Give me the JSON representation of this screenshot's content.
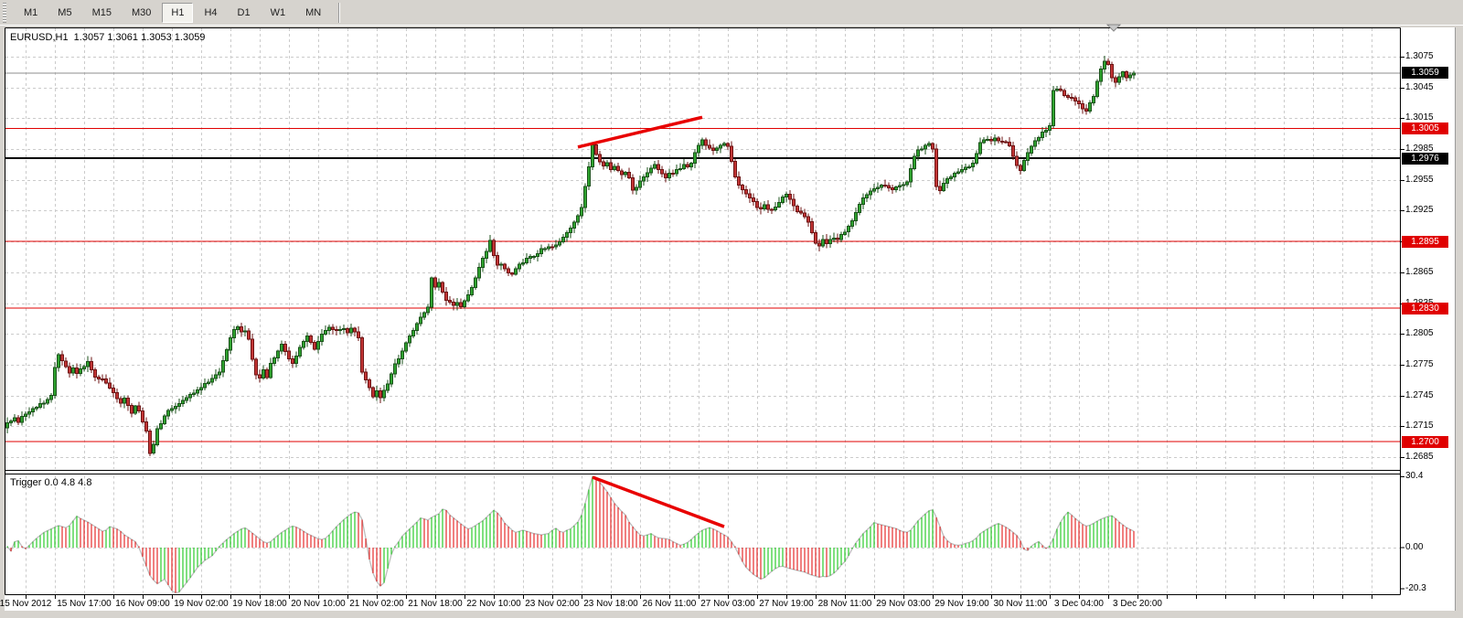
{
  "toolbar": {
    "buttons": [
      {
        "label": "M1",
        "active": false
      },
      {
        "label": "M5",
        "active": false
      },
      {
        "label": "M15",
        "active": false
      },
      {
        "label": "M30",
        "active": false
      },
      {
        "label": "H1",
        "active": true
      },
      {
        "label": "H4",
        "active": false
      },
      {
        "label": "D1",
        "active": false
      },
      {
        "label": "W1",
        "active": false
      },
      {
        "label": "MN",
        "active": false
      }
    ]
  },
  "chart": {
    "symbol_title": "EURUSD,H1  1.3057 1.3061 1.3053 1.3059",
    "indicator_title": "Trigger 0.0 4.8 4.8"
  },
  "chart_data": {
    "type": "candlestick",
    "symbol": "EURUSD",
    "timeframe": "H1",
    "current_ohlc": {
      "o": 1.3057,
      "h": 1.3061,
      "l": 1.3053,
      "c": 1.3059
    },
    "num_candles": 309,
    "price_axis_labels": [
      "1.3075",
      "1.3045",
      "1.3015",
      "1.2985",
      "1.2955",
      "1.2925",
      "1.2895",
      "1.2865",
      "1.2835",
      "1.2805",
      "1.2775",
      "1.2745",
      "1.2715",
      "1.2685"
    ],
    "price_badges": [
      {
        "text": "1.3059",
        "price": 1.3059,
        "color": "#000000"
      },
      {
        "text": "1.3005",
        "price": 1.3005,
        "color": "#E00000"
      },
      {
        "text": "1.2976",
        "price": 1.2976,
        "color": "#000000"
      },
      {
        "text": "1.2895",
        "price": 1.2895,
        "color": "#E00000"
      },
      {
        "text": "1.2830",
        "price": 1.283,
        "color": "#E00000"
      },
      {
        "text": "1.2700",
        "price": 1.27,
        "color": "#E00000"
      }
    ],
    "levels": [
      {
        "price": 1.3005,
        "color": "#E00000",
        "width": 1
      },
      {
        "price": 1.2895,
        "color": "#E00000",
        "width": 1
      },
      {
        "price": 1.283,
        "color": "#E00000",
        "width": 1
      },
      {
        "price": 1.27,
        "color": "#E00000",
        "width": 1
      },
      {
        "price": 1.2976,
        "color": "#000000",
        "width": 2
      }
    ],
    "bid_price": 1.3059,
    "time_labels": {
      "start_index": 5,
      "step": 16,
      "texts": [
        "15 Nov 2012",
        "15 Nov 17:00",
        "16 Nov 09:00",
        "19 Nov 02:00",
        "19 Nov 18:00",
        "20 Nov 10:00",
        "21 Nov 02:00",
        "21 Nov 18:00",
        "22 Nov 10:00",
        "23 Nov 02:00",
        "23 Nov 18:00",
        "26 Nov 11:00",
        "27 Nov 03:00",
        "27 Nov 19:00",
        "28 Nov 11:00",
        "29 Nov 03:00",
        "29 Nov 19:00",
        "30 Nov 11:00",
        "3 Dec 04:00",
        "3 Dec 20:00"
      ]
    },
    "price_waypoints": [
      0,
      1.2718,
      2,
      1.2724,
      3,
      1.272,
      5,
      1.2727,
      7,
      1.2732,
      9,
      1.2736,
      11,
      1.2741,
      12,
      1.2746,
      13,
      1.2772,
      14,
      1.2785,
      15,
      1.2779,
      16,
      1.2774,
      17,
      1.2766,
      18,
      1.2771,
      19,
      1.2766,
      20,
      1.277,
      21,
      1.2774,
      22,
      1.2778,
      23,
      1.2771,
      24,
      1.2763,
      25,
      1.276,
      26,
      1.2762,
      27,
      1.2757,
      28,
      1.2752,
      29,
      1.2747,
      30,
      1.2742,
      31,
      1.2738,
      32,
      1.2742,
      33,
      1.2735,
      34,
      1.2728,
      35,
      1.2734,
      36,
      1.2731,
      37,
      1.2719,
      38,
      1.271,
      39,
      1.269,
      40,
      1.2698,
      41,
      1.2712,
      42,
      1.2718,
      43,
      1.2725,
      44,
      1.273,
      46,
      1.2735,
      48,
      1.2741,
      50,
      1.2746,
      52,
      1.2751,
      54,
      1.2756,
      56,
      1.2762,
      58,
      1.2769,
      60,
      1.2789,
      61,
      1.2801,
      62,
      1.281,
      63,
      1.2813,
      64,
      1.2806,
      65,
      1.2809,
      66,
      1.28,
      67,
      1.278,
      68,
      1.2766,
      69,
      1.2762,
      70,
      1.2769,
      71,
      1.2763,
      72,
      1.2776,
      74,
      1.2789,
      75,
      1.2796,
      76,
      1.2788,
      77,
      1.278,
      78,
      1.2776,
      79,
      1.2783,
      80,
      1.2791,
      81,
      1.2798,
      82,
      1.2803,
      83,
      1.2796,
      84,
      1.2791,
      85,
      1.2799,
      86,
      1.2805,
      87,
      1.2809,
      88,
      1.2812,
      90,
      1.2808,
      92,
      1.2811,
      93,
      1.2806,
      94,
      1.281,
      95,
      1.2808,
      96,
      1.2802,
      97,
      1.2768,
      98,
      1.276,
      99,
      1.2752,
      100,
      1.2745,
      101,
      1.2749,
      102,
      1.2744,
      103,
      1.2751,
      104,
      1.2756,
      105,
      1.2766,
      106,
      1.2776,
      107,
      1.2781,
      108,
      1.2789,
      109,
      1.2797,
      110,
      1.2803,
      111,
      1.2809,
      112,
      1.2816,
      113,
      1.2821,
      114,
      1.2826,
      115,
      1.2831,
      116,
      1.2859,
      117,
      1.2851,
      118,
      1.2856,
      119,
      1.2846,
      120,
      1.2839,
      121,
      1.2836,
      122,
      1.2832,
      123,
      1.2836,
      124,
      1.2831,
      125,
      1.2837,
      126,
      1.2843,
      127,
      1.2851,
      128,
      1.2859,
      129,
      1.2869,
      130,
      1.2878,
      131,
      1.2886,
      132,
      1.2895,
      133,
      1.2881,
      134,
      1.2871,
      135,
      1.2874,
      136,
      1.2869,
      137,
      1.2864,
      138,
      1.2862,
      139,
      1.2868,
      140,
      1.2872,
      142,
      1.2878,
      144,
      1.2881,
      146,
      1.2887,
      148,
      1.2889,
      150,
      1.2891,
      151,
      1.2895,
      152,
      1.2899,
      153,
      1.2903,
      154,
      1.2909,
      155,
      1.2913,
      156,
      1.2919,
      157,
      1.2929,
      158,
      1.2949,
      159,
      1.2969,
      160,
      1.2989,
      161,
      1.2981,
      162,
      1.2973,
      163,
      1.2968,
      164,
      1.2971,
      165,
      1.2966,
      166,
      1.2969,
      167,
      1.2964,
      168,
      1.2961,
      169,
      1.2963,
      170,
      1.2956,
      171,
      1.2944,
      172,
      1.2948,
      173,
      1.2953,
      174,
      1.2959,
      175,
      1.2963,
      176,
      1.2966,
      177,
      1.2969,
      178,
      1.2964,
      179,
      1.2961,
      180,
      1.2958,
      181,
      1.2962,
      182,
      1.296,
      183,
      1.2964,
      184,
      1.2966,
      185,
      1.2969,
      186,
      1.2967,
      187,
      1.2971,
      188,
      1.2981,
      189,
      1.2989,
      190,
      1.2993,
      191,
      1.2989,
      192,
      1.2986,
      193,
      1.2983,
      194,
      1.2986,
      195,
      1.2989,
      196,
      1.2991,
      197,
      1.2987,
      198,
      1.2973,
      199,
      1.2959,
      200,
      1.2949,
      201,
      1.2945,
      202,
      1.2941,
      203,
      1.2937,
      204,
      1.2933,
      205,
      1.2929,
      206,
      1.2927,
      207,
      1.293,
      208,
      1.2927,
      209,
      1.2925,
      210,
      1.2929,
      211,
      1.2933,
      212,
      1.2939,
      213,
      1.2941,
      214,
      1.2936,
      215,
      1.2929,
      216,
      1.2925,
      217,
      1.2923,
      218,
      1.2919,
      219,
      1.2913,
      220,
      1.2903,
      221,
      1.2893,
      222,
      1.2891,
      223,
      1.2896,
      224,
      1.2893,
      225,
      1.2897,
      226,
      1.2899,
      227,
      1.2897,
      228,
      1.2901,
      229,
      1.2904,
      230,
      1.2909,
      231,
      1.2916,
      232,
      1.2923,
      233,
      1.2931,
      234,
      1.2937,
      235,
      1.2941,
      236,
      1.2943,
      237,
      1.2946,
      238,
      1.2948,
      239,
      1.295,
      240,
      1.2949,
      241,
      1.2947,
      242,
      1.2945,
      243,
      1.2947,
      244,
      1.2949,
      245,
      1.2951,
      246,
      1.2954,
      247,
      1.2965,
      248,
      1.2977,
      249,
      1.2984,
      250,
      1.2985,
      251,
      1.2988,
      252,
      1.299,
      253,
      1.2985,
      254,
      1.2949,
      255,
      1.2945,
      256,
      1.2951,
      257,
      1.2956,
      258,
      1.2959,
      259,
      1.2961,
      260,
      1.2963,
      261,
      1.2965,
      262,
      1.2967,
      263,
      1.2968,
      264,
      1.2971,
      265,
      1.2981,
      266,
      1.2991,
      267,
      1.2993,
      268,
      1.2995,
      269,
      1.2994,
      270,
      1.2996,
      271,
      1.2994,
      272,
      1.2993,
      273,
      1.2991,
      274,
      1.2989,
      275,
      1.2979,
      276,
      1.2969,
      277,
      1.2965,
      278,
      1.2975,
      279,
      1.2981,
      280,
      1.2987,
      281,
      1.2993,
      282,
      1.2997,
      283,
      1.3001,
      284,
      1.3003,
      285,
      1.3007,
      286,
      1.3041,
      287,
      1.3044,
      288,
      1.3041,
      289,
      1.3038,
      290,
      1.3036,
      291,
      1.3034,
      292,
      1.3031,
      293,
      1.3029,
      294,
      1.3025,
      295,
      1.3023,
      296,
      1.3029,
      297,
      1.3035,
      298,
      1.3051,
      299,
      1.3063,
      300,
      1.3071,
      301,
      1.3067,
      302,
      1.3055,
      303,
      1.3049,
      304,
      1.3055,
      305,
      1.3059,
      306,
      1.3055,
      307,
      1.3057,
      308,
      1.3059
    ],
    "oscillator": {
      "name": "Trigger",
      "params": "0.0 4.8 4.8",
      "axis_labels": [
        {
          "text": "30.4",
          "value": 30.4
        },
        {
          "text": "0.00",
          "value": 0
        },
        {
          "text": "-20.3",
          "value": -20.3
        }
      ],
      "waypoints": [
        0,
        0.5,
        1,
        -1.5,
        2,
        2.5,
        3,
        3,
        4,
        0.5,
        5,
        -0.5,
        6,
        1,
        8,
        4,
        10,
        6.5,
        12,
        8,
        14,
        9.5,
        15,
        9,
        16,
        8.5,
        17,
        9.5,
        19,
        13.5,
        20,
        12.5,
        22,
        11,
        24,
        9,
        26,
        7,
        27,
        7.5,
        28,
        9,
        29,
        8.5,
        30,
        8,
        31,
        7,
        32,
        5.5,
        33,
        4.5,
        34,
        3.5,
        35,
        2.5,
        36,
        0,
        37,
        -4,
        38,
        -8,
        39,
        -12,
        40,
        -14,
        41,
        -15.5,
        42,
        -14.5,
        43,
        -13.5,
        44,
        -16,
        45,
        -18.5,
        46,
        -20.3,
        47,
        -19,
        48,
        -17,
        49,
        -15,
        50,
        -13,
        52,
        -8.5,
        54,
        -5.5,
        56,
        -3.5,
        57,
        -1.5,
        58,
        0.5,
        59,
        2,
        60,
        3.5,
        62,
        6,
        64,
        8,
        65,
        8.5,
        66,
        7.5,
        68,
        5,
        70,
        2.5,
        71,
        2,
        72,
        2.5,
        73,
        4,
        75,
        6.5,
        77,
        8.5,
        78,
        9.2,
        79,
        8.8,
        80,
        8,
        82,
        6,
        84,
        4.5,
        85,
        3.8,
        86,
        3.5,
        87,
        4,
        88,
        5.5,
        90,
        9,
        92,
        12,
        94,
        14.5,
        95,
        15.2,
        96,
        15,
        97,
        12,
        98,
        4,
        99,
        -5,
        100,
        -11,
        101,
        -14.5,
        102,
        -16.5,
        103,
        -15,
        104,
        -9,
        105,
        -3,
        106,
        0.5,
        107,
        2.5,
        108,
        5,
        110,
        8,
        112,
        11,
        113,
        12.7,
        114,
        12.3,
        115,
        11.8,
        116,
        13,
        118,
        14.5,
        119,
        16.5,
        120,
        16,
        121,
        14,
        123,
        11.5,
        125,
        9,
        126,
        8,
        127,
        8.5,
        128,
        9.5,
        130,
        11.5,
        132,
        14.5,
        133,
        16,
        134,
        15,
        135,
        13,
        136,
        10.5,
        138,
        7.5,
        139,
        6.5,
        140,
        7,
        141,
        7.5,
        142,
        7,
        144,
        6,
        146,
        5.5,
        148,
        6,
        149,
        7.5,
        150,
        8.3,
        151,
        7,
        152,
        6.5,
        153,
        7.5,
        154,
        8,
        156,
        11,
        157,
        14,
        158,
        19,
        159,
        25,
        160,
        30.4,
        161,
        29.5,
        162,
        28,
        164,
        24,
        166,
        19,
        168,
        15.5,
        169,
        14,
        170,
        11,
        171,
        9,
        172,
        7,
        173,
        5.5,
        174,
        5,
        175,
        5.5,
        176,
        6,
        177,
        5,
        178,
        4.2,
        180,
        3.8,
        181,
        3.5,
        182,
        2.5,
        184,
        1,
        185,
        1.5,
        186,
        2.2,
        187,
        3.5,
        188,
        5,
        190,
        7.5,
        192,
        8.6,
        193,
        8,
        194,
        7.2,
        196,
        5.5,
        197,
        4.5,
        198,
        2.5,
        199,
        0,
        200,
        -3,
        201,
        -6,
        202,
        -8.5,
        204,
        -11.5,
        206,
        -13.5,
        207,
        -13,
        208,
        -11.5,
        209,
        -10.2,
        210,
        -9,
        211,
        -8.2,
        212,
        -8,
        213,
        -8.5,
        214,
        -9,
        216,
        -9.8,
        218,
        -10.5,
        219,
        -11.2,
        220,
        -11.8,
        222,
        -12.7,
        223,
        -12.3,
        224,
        -12.5,
        225,
        -12,
        226,
        -11,
        227,
        -9.5,
        228,
        -7.5,
        229,
        -6,
        230,
        -3.5,
        231,
        -0.5,
        232,
        2,
        233,
        4,
        234,
        6,
        236,
        9,
        237,
        10.8,
        238,
        10.2,
        240,
        9.4,
        242,
        8.6,
        243,
        8.2,
        244,
        7.4,
        245,
        6.8,
        246,
        6.6,
        247,
        7.5,
        248,
        9.5,
        249,
        11.5,
        250,
        13,
        251,
        14.5,
        252,
        15.8,
        253,
        16.2,
        254,
        13,
        255,
        9,
        256,
        5,
        257,
        3,
        258,
        1.8,
        259,
        1.2,
        260,
        1,
        261,
        1.2,
        262,
        1.8,
        263,
        2.2,
        264,
        3,
        265,
        4.2,
        266,
        6,
        268,
        8,
        270,
        9.8,
        271,
        10.3,
        272,
        9.6,
        273,
        8.8,
        274,
        7.8,
        275,
        6.5,
        276,
        5.2,
        277,
        3,
        278,
        -0.8,
        279,
        -1.2,
        280,
        0.6,
        281,
        1.8,
        282,
        2.6,
        283,
        1,
        284,
        -0.4,
        285,
        0.8,
        286,
        4,
        287,
        8,
        288,
        11,
        289,
        13.5,
        290,
        15.2,
        291,
        14,
        292,
        12.5,
        293,
        11.2,
        294,
        10,
        295,
        9.2,
        296,
        9.6,
        297,
        10.4,
        298,
        11.4,
        299,
        12.2,
        300,
        12.8,
        301,
        13.4,
        302,
        13.7,
        303,
        12.5,
        304,
        11,
        305,
        9.8,
        306,
        8.6,
        307,
        7.8,
        308,
        7
      ]
    },
    "trend_lines": {
      "price": [
        {
          "i1": 156,
          "p1": 1.2987,
          "i2": 190,
          "p2": 1.3016
        }
      ],
      "osc": [
        {
          "i1": 160,
          "v1": 30.2,
          "i2": 196,
          "v2": 9.0
        }
      ]
    },
    "colors": {
      "bull_fill": "#2FA32F",
      "bull_stroke": "#1B521B",
      "bear_fill": "#C23535",
      "bear_stroke": "#6E1414",
      "hist_up": "#00C000",
      "hist_down": "#E00000",
      "envelope": "#BDBDBD",
      "grid": "#CBCBCB",
      "trend": "#E80000",
      "bid_line": "#8C8C8C",
      "border": "#000000"
    }
  }
}
